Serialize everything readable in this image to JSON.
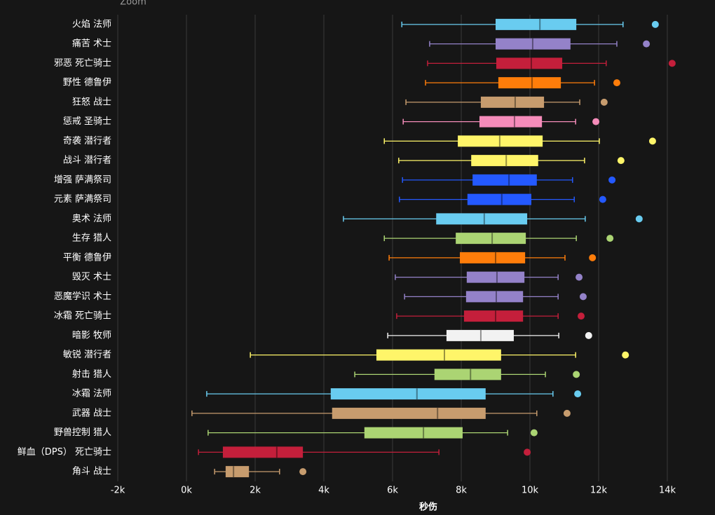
{
  "chart_data": {
    "type": "boxplot",
    "orientation": "horizontal",
    "zoom_label": "Zoom",
    "x_label": "秒伤",
    "grid": true,
    "xlim": [
      -2000,
      15000
    ],
    "xticks": [
      {
        "value": -2000,
        "label": "-2k"
      },
      {
        "value": 0,
        "label": "0k"
      },
      {
        "value": 2000,
        "label": "2k"
      },
      {
        "value": 4000,
        "label": "4k"
      },
      {
        "value": 6000,
        "label": "6k"
      },
      {
        "value": 8000,
        "label": "8k"
      },
      {
        "value": 10000,
        "label": "10k"
      },
      {
        "value": 12000,
        "label": "12k"
      },
      {
        "value": 14000,
        "label": "14k"
      }
    ],
    "categories": [
      "火焰 法师",
      "痛苦 术士",
      "邪恶 死亡骑士",
      "野性 德鲁伊",
      "狂怒 战士",
      "惩戒 圣骑士",
      "奇袭 潜行者",
      "战斗 潜行者",
      "增强 萨满祭司",
      "元素 萨满祭司",
      "奥术 法师",
      "生存 猎人",
      "平衡 德鲁伊",
      "毁灭 术士",
      "恶魔学识 术士",
      "冰霜 死亡骑士",
      "暗影 牧师",
      "敏锐 潜行者",
      "射击 猎人",
      "冰霜 法师",
      "武器 战士",
      "野兽控制 猎人",
      "鲜血（DPS） 死亡骑士",
      "角斗 战士"
    ],
    "colors": [
      "#69ccf0",
      "#9482c9",
      "#c41f3b",
      "#ff7d0a",
      "#c79c6e",
      "#f58cba",
      "#fff569",
      "#fff569",
      "#2459ff",
      "#2459ff",
      "#69ccf0",
      "#abd473",
      "#ff7d0a",
      "#9482c9",
      "#9482c9",
      "#c41f3b",
      "#f2f2f2",
      "#fff569",
      "#abd473",
      "#69ccf0",
      "#c79c6e",
      "#abd473",
      "#c41f3b",
      "#c79c6e"
    ],
    "min": [
      6270,
      7080,
      7020,
      6960,
      6390,
      6310,
      5760,
      6180,
      6290,
      6200,
      4570,
      5760,
      5900,
      6080,
      6350,
      6120,
      5860,
      1860,
      4900,
      590,
      160,
      630,
      350,
      820
    ],
    "q1": [
      9000,
      9000,
      9020,
      9080,
      8570,
      8530,
      7900,
      8290,
      8330,
      8180,
      7270,
      7840,
      7960,
      8160,
      8140,
      8080,
      7570,
      5530,
      7220,
      4200,
      4240,
      5180,
      1060,
      1140
    ],
    "median": [
      10290,
      10080,
      10040,
      10060,
      9570,
      9550,
      9120,
      9310,
      9390,
      9180,
      8670,
      8900,
      9000,
      9040,
      9020,
      9000,
      8570,
      7510,
      8270,
      6710,
      7310,
      6900,
      2630,
      1370
    ],
    "q3": [
      11350,
      11180,
      10940,
      10900,
      10410,
      10350,
      10370,
      10240,
      10200,
      10040,
      9920,
      9880,
      9860,
      9840,
      9800,
      9800,
      9530,
      9160,
      9160,
      8710,
      8710,
      8040,
      3390,
      1820
    ],
    "max": [
      12710,
      12530,
      12220,
      11880,
      11450,
      11330,
      12020,
      11590,
      11240,
      11290,
      11610,
      11350,
      11020,
      10820,
      10820,
      10820,
      10840,
      11330,
      10450,
      10670,
      10200,
      9350,
      7350,
      2710
    ],
    "outliers": [
      13650,
      13390,
      14140,
      12530,
      12160,
      11920,
      13570,
      12650,
      12390,
      12120,
      13180,
      12330,
      11820,
      11430,
      11550,
      11490,
      11710,
      12780,
      11350,
      11390,
      11080,
      10120,
      9920,
      3390
    ]
  }
}
